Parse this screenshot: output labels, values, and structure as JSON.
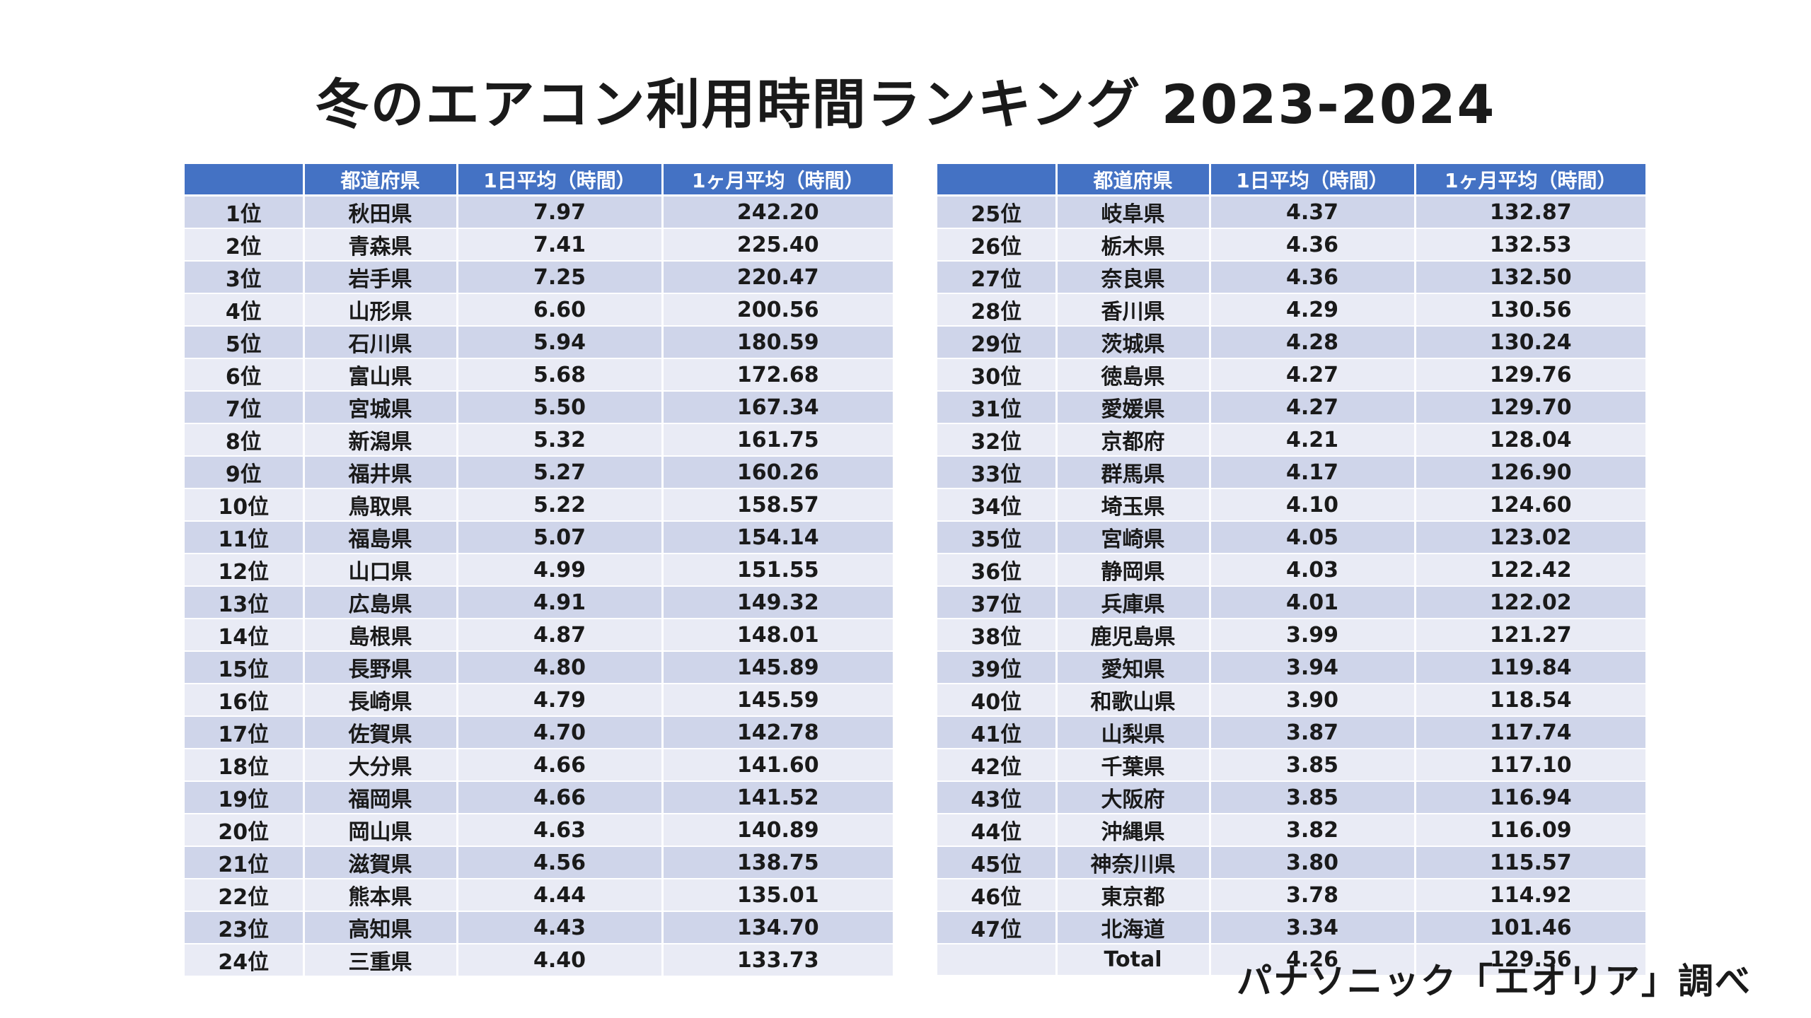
{
  "title": "冬のエアコン利用時間ランキング 2023-2024",
  "source": "パナソニック「エオリア」調べ",
  "headers": [
    "",
    "都道府県",
    "1日平均（時間）",
    "1ヶ月平均（時間）"
  ],
  "colors": {
    "header_bg": "#4472c4",
    "row_band_dark": "#cfd5ea",
    "row_band_light": "#e9ebf5"
  },
  "left_table": [
    [
      "1位",
      "秋田県",
      "7.97",
      "242.20"
    ],
    [
      "2位",
      "青森県",
      "7.41",
      "225.40"
    ],
    [
      "3位",
      "岩手県",
      "7.25",
      "220.47"
    ],
    [
      "4位",
      "山形県",
      "6.60",
      "200.56"
    ],
    [
      "5位",
      "石川県",
      "5.94",
      "180.59"
    ],
    [
      "6位",
      "富山県",
      "5.68",
      "172.68"
    ],
    [
      "7位",
      "宮城県",
      "5.50",
      "167.34"
    ],
    [
      "8位",
      "新潟県",
      "5.32",
      "161.75"
    ],
    [
      "9位",
      "福井県",
      "5.27",
      "160.26"
    ],
    [
      "10位",
      "鳥取県",
      "5.22",
      "158.57"
    ],
    [
      "11位",
      "福島県",
      "5.07",
      "154.14"
    ],
    [
      "12位",
      "山口県",
      "4.99",
      "151.55"
    ],
    [
      "13位",
      "広島県",
      "4.91",
      "149.32"
    ],
    [
      "14位",
      "島根県",
      "4.87",
      "148.01"
    ],
    [
      "15位",
      "長野県",
      "4.80",
      "145.89"
    ],
    [
      "16位",
      "長崎県",
      "4.79",
      "145.59"
    ],
    [
      "17位",
      "佐賀県",
      "4.70",
      "142.78"
    ],
    [
      "18位",
      "大分県",
      "4.66",
      "141.60"
    ],
    [
      "19位",
      "福岡県",
      "4.66",
      "141.52"
    ],
    [
      "20位",
      "岡山県",
      "4.63",
      "140.89"
    ],
    [
      "21位",
      "滋賀県",
      "4.56",
      "138.75"
    ],
    [
      "22位",
      "熊本県",
      "4.44",
      "135.01"
    ],
    [
      "23位",
      "高知県",
      "4.43",
      "134.70"
    ],
    [
      "24位",
      "三重県",
      "4.40",
      "133.73"
    ]
  ],
  "right_table": [
    [
      "25位",
      "岐阜県",
      "4.37",
      "132.87"
    ],
    [
      "26位",
      "栃木県",
      "4.36",
      "132.53"
    ],
    [
      "27位",
      "奈良県",
      "4.36",
      "132.50"
    ],
    [
      "28位",
      "香川県",
      "4.29",
      "130.56"
    ],
    [
      "29位",
      "茨城県",
      "4.28",
      "130.24"
    ],
    [
      "30位",
      "徳島県",
      "4.27",
      "129.76"
    ],
    [
      "31位",
      "愛媛県",
      "4.27",
      "129.70"
    ],
    [
      "32位",
      "京都府",
      "4.21",
      "128.04"
    ],
    [
      "33位",
      "群馬県",
      "4.17",
      "126.90"
    ],
    [
      "34位",
      "埼玉県",
      "4.10",
      "124.60"
    ],
    [
      "35位",
      "宮崎県",
      "4.05",
      "123.02"
    ],
    [
      "36位",
      "静岡県",
      "4.03",
      "122.42"
    ],
    [
      "37位",
      "兵庫県",
      "4.01",
      "122.02"
    ],
    [
      "38位",
      "鹿児島県",
      "3.99",
      "121.27"
    ],
    [
      "39位",
      "愛知県",
      "3.94",
      "119.84"
    ],
    [
      "40位",
      "和歌山県",
      "3.90",
      "118.54"
    ],
    [
      "41位",
      "山梨県",
      "3.87",
      "117.74"
    ],
    [
      "42位",
      "千葉県",
      "3.85",
      "117.10"
    ],
    [
      "43位",
      "大阪府",
      "3.85",
      "116.94"
    ],
    [
      "44位",
      "沖縄県",
      "3.82",
      "116.09"
    ],
    [
      "45位",
      "神奈川県",
      "3.80",
      "115.57"
    ],
    [
      "46位",
      "東京都",
      "3.78",
      "114.92"
    ],
    [
      "47位",
      "北海道",
      "3.34",
      "101.46"
    ],
    [
      "",
      "Total",
      "4.26",
      "129.56"
    ]
  ]
}
